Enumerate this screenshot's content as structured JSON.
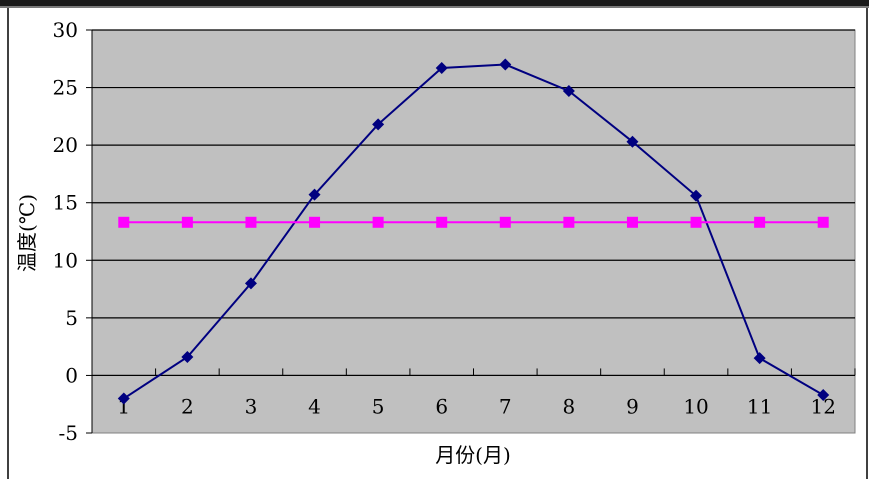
{
  "chart_data": {
    "type": "line",
    "xlabel": "月份(月)",
    "ylabel": "温度(℃)",
    "categories": [
      "1",
      "2",
      "3",
      "4",
      "5",
      "6",
      "7",
      "8",
      "9",
      "10",
      "11",
      "12"
    ],
    "ylim": [
      -5,
      30
    ],
    "yticks": [
      "30",
      "25",
      "20",
      "15",
      "10",
      "5",
      "0",
      "-5"
    ],
    "ytick_values": [
      30,
      25,
      20,
      15,
      10,
      5,
      0,
      -5
    ],
    "grid": true,
    "legend": "none",
    "plot_background": "#c0c0c0",
    "series": [
      {
        "values": [
          -2.0,
          1.6,
          8.0,
          15.7,
          21.8,
          26.7,
          27.0,
          24.7,
          20.3,
          15.6,
          1.5,
          -1.7
        ],
        "color": "#000080",
        "marker": "diamond"
      },
      {
        "values": [
          13.3,
          13.3,
          13.3,
          13.3,
          13.3,
          13.3,
          13.3,
          13.3,
          13.3,
          13.3,
          13.3,
          13.3
        ],
        "color": "#ff00ff",
        "marker": "square"
      }
    ]
  }
}
